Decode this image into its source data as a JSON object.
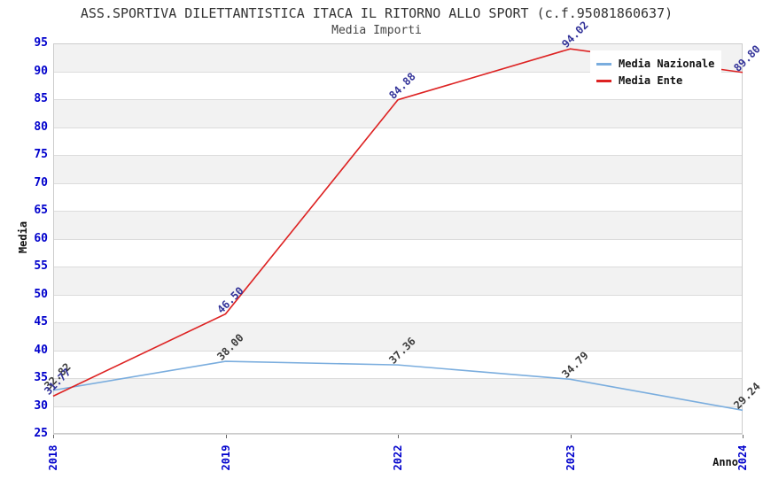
{
  "chart_data": {
    "type": "line",
    "title": "ASS.SPORTIVA DILETTANTISTICA ITACA IL RITORNO ALLO SPORT (c.f.95081860637)",
    "subtitle": "Media Importi",
    "xlabel": "Anno",
    "ylabel": "Media",
    "categories": [
      "2018",
      "2019",
      "2022",
      "2023",
      "2024"
    ],
    "ylim": [
      25,
      95
    ],
    "ytick_step": 5,
    "grid": "horizontal gridlines with alternating stripe bands",
    "legend_position": "top-right",
    "series": [
      {
        "name": "Media Nazionale",
        "color": "#7aadde",
        "label_color": "#3c3c3c",
        "values": [
          32.82,
          38.0,
          37.36,
          34.79,
          29.24
        ],
        "labels": [
          "32.82",
          "38.00",
          "37.36",
          "34.79",
          "29.24"
        ]
      },
      {
        "name": "Media Ente",
        "color": "#dd2222",
        "label_color": "#333399",
        "values": [
          31.77,
          46.5,
          84.88,
          94.02,
          89.8
        ],
        "labels": [
          "31.77",
          "46.50",
          "84.88",
          "94.02",
          "89.80"
        ]
      }
    ],
    "colors": {
      "axis_tick": "#0000cc",
      "title": "#333333",
      "stripe": "#f2f2f2",
      "gridline": "#dcdcdc",
      "plot_border": "#cccccc",
      "background": "#ffffff"
    }
  }
}
